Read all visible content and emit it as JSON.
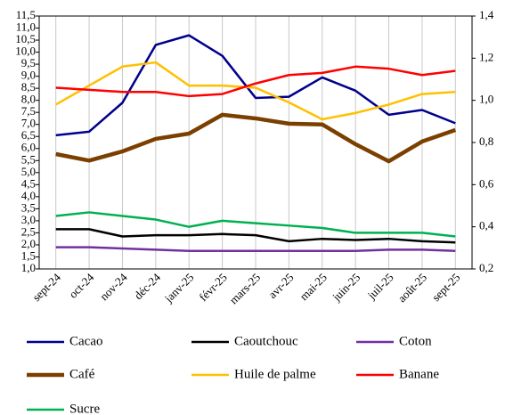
{
  "chart_data": {
    "type": "line",
    "categories": [
      "sept-24",
      "oct-24",
      "nov-24",
      "déc-24",
      "janv-25",
      "févr-25",
      "mars-25",
      "avr-25",
      "mai-25",
      "juin-25",
      "juil-25",
      "août-25",
      "sept-25"
    ],
    "series": [
      {
        "name": "Cacao",
        "color": "#00008b",
        "values": [
          6.55,
          6.7,
          7.9,
          10.3,
          10.7,
          9.85,
          8.1,
          8.15,
          8.95,
          8.4,
          7.4,
          7.6,
          7.05
        ]
      },
      {
        "name": "Caoutchouc",
        "color": "#000000",
        "values": [
          2.65,
          2.65,
          2.35,
          2.4,
          2.4,
          2.45,
          2.4,
          2.15,
          2.25,
          2.2,
          2.25,
          2.15,
          2.1
        ]
      },
      {
        "name": "Coton",
        "color": "#7030a0",
        "values": [
          1.9,
          1.9,
          1.85,
          1.8,
          1.75,
          1.75,
          1.75,
          1.75,
          1.75,
          1.75,
          1.8,
          1.8,
          1.75
        ]
      },
      {
        "name": "Café",
        "color": "#7b3f00",
        "values": [
          5.77,
          5.5,
          5.88,
          6.4,
          6.62,
          7.4,
          7.25,
          7.03,
          7.0,
          6.18,
          5.47,
          6.29,
          6.77
        ]
      },
      {
        "name": "Huile de palme",
        "color": "#ffc000",
        "axis": "y2",
        "values": [
          0.98,
          1.07,
          1.16,
          1.18,
          1.07,
          1.07,
          1.06,
          0.99,
          0.91,
          0.94,
          0.98,
          1.03,
          1.04
        ]
      },
      {
        "name": "Banane",
        "color": "#ff0000",
        "axis": "y2",
        "values": [
          1.06,
          1.05,
          1.04,
          1.04,
          1.02,
          1.03,
          1.08,
          1.12,
          1.13,
          1.16,
          1.15,
          1.12,
          1.14
        ]
      },
      {
        "name": "Sucre",
        "color": "#00b050",
        "values": [
          3.2,
          3.35,
          3.2,
          3.05,
          2.75,
          3.0,
          2.9,
          2.8,
          2.7,
          2.5,
          2.5,
          2.5,
          2.35
        ]
      }
    ],
    "ylim": [
      1.0,
      11.5
    ],
    "yticks": [
      {
        "value": 1.0,
        "label": "1,0"
      },
      {
        "value": 1.5,
        "label": "1,5"
      },
      {
        "value": 2.0,
        "label": "2,0"
      },
      {
        "value": 2.5,
        "label": "2,5"
      },
      {
        "value": 3.0,
        "label": "3,0"
      },
      {
        "value": 3.5,
        "label": "3,5"
      },
      {
        "value": 4.0,
        "label": "4,0"
      },
      {
        "value": 4.5,
        "label": "4,5"
      },
      {
        "value": 5.0,
        "label": "5,0"
      },
      {
        "value": 5.5,
        "label": "5,5"
      },
      {
        "value": 6.0,
        "label": "6,0"
      },
      {
        "value": 6.5,
        "label": "6,5"
      },
      {
        "value": 7.0,
        "label": "7,0"
      },
      {
        "value": 7.5,
        "label": "7,5"
      },
      {
        "value": 8.0,
        "label": "8,0"
      },
      {
        "value": 8.5,
        "label": "8,5"
      },
      {
        "value": 9.0,
        "label": "9,0"
      },
      {
        "value": 9.5,
        "label": "9,5"
      },
      {
        "value": 10.0,
        "label": "10,0"
      },
      {
        "value": 10.5,
        "label": "10,5"
      },
      {
        "value": 11.0,
        "label": "11,0"
      },
      {
        "value": 11.5,
        "label": "11,5"
      }
    ],
    "y2lim": [
      0.2,
      1.4
    ],
    "y2ticks": [
      {
        "value": 0.2,
        "label": "0,2"
      },
      {
        "value": 0.4,
        "label": "0,4"
      },
      {
        "value": 0.6,
        "label": "0,6"
      },
      {
        "value": 0.8,
        "label": "0,8"
      },
      {
        "value": 1.0,
        "label": "1,0"
      },
      {
        "value": 1.2,
        "label": "1,2"
      },
      {
        "value": 1.4,
        "label": "1,4"
      }
    ],
    "grid": "x",
    "legend": "bottom"
  }
}
